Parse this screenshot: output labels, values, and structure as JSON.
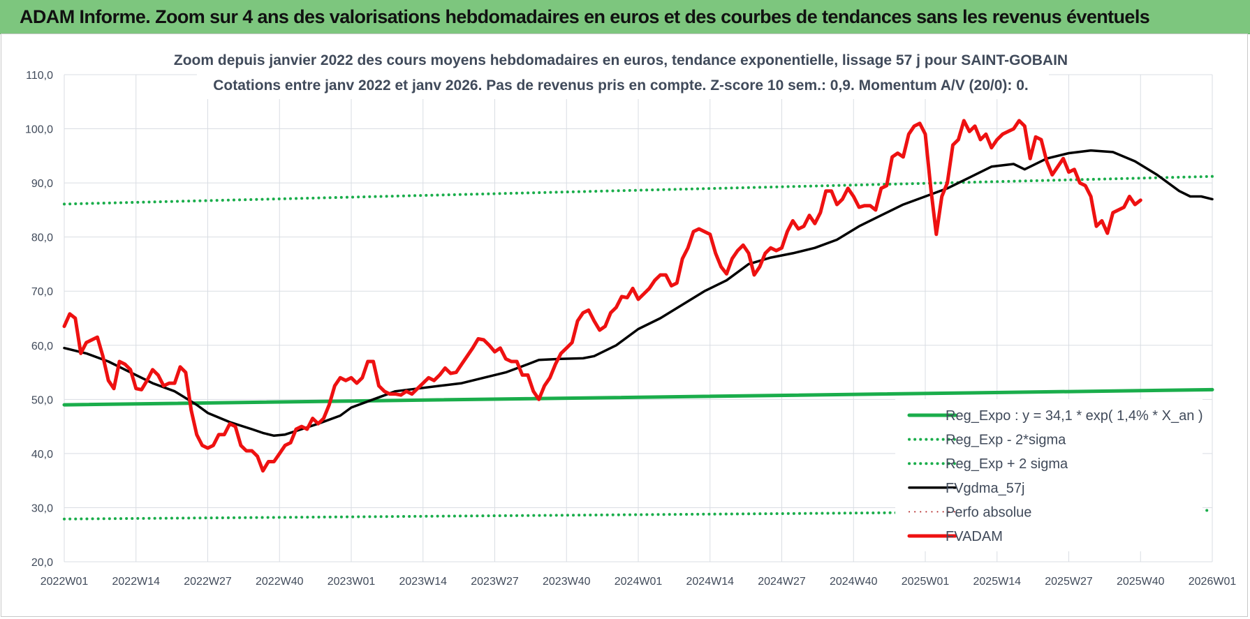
{
  "banner": {
    "title": "ADAM Informe. Zoom sur 4 ans des valorisations hebdomadaires en euros et des courbes de tendances sans les revenus éventuels"
  },
  "chart_data": {
    "type": "line",
    "title": "Zoom depuis janvier 2022 des cours moyens hebdomadaires en euros, tendance exponentielle, lissage 57 j pour SAINT-GOBAIN",
    "subtitle": "Cotations entre janv 2022 et janv 2026. Pas de revenus pris en compte. Z-score 10 sem.: 0,9. Momentum A/V (20/0): 0.",
    "xlabel": "",
    "ylabel": "",
    "ylim": [
      20,
      110
    ],
    "yticks": [
      "20,0",
      "30,0",
      "40,0",
      "50,0",
      "60,0",
      "70,0",
      "80,0",
      "90,0",
      "100,0",
      "110,0"
    ],
    "xlim": [
      0,
      208
    ],
    "xticks": [
      {
        "i": 0,
        "label": "2022W01"
      },
      {
        "i": 13,
        "label": "2022W14"
      },
      {
        "i": 26,
        "label": "2022W27"
      },
      {
        "i": 39,
        "label": "2022W40"
      },
      {
        "i": 52,
        "label": "2023W01"
      },
      {
        "i": 65,
        "label": "2023W14"
      },
      {
        "i": 78,
        "label": "2023W27"
      },
      {
        "i": 91,
        "label": "2023W40"
      },
      {
        "i": 104,
        "label": "2024W01"
      },
      {
        "i": 117,
        "label": "2024W14"
      },
      {
        "i": 130,
        "label": "2024W27"
      },
      {
        "i": 143,
        "label": "2024W40"
      },
      {
        "i": 156,
        "label": "2025W01"
      },
      {
        "i": 169,
        "label": "2025W14"
      },
      {
        "i": 182,
        "label": "2025W27"
      },
      {
        "i": 195,
        "label": "2025W40"
      },
      {
        "i": 208,
        "label": "2026W01"
      }
    ],
    "grid": true,
    "legend_position": "bottom-right",
    "series": [
      {
        "name": "Reg_Expo : y = 34,1 * exp( 1,4% *  X_an )",
        "color": "#1aad4b",
        "style": "solid",
        "width": 5,
        "points": [
          [
            0,
            49.0
          ],
          [
            208,
            51.8
          ]
        ]
      },
      {
        "name": "Reg_Exp - 2*sigma",
        "color": "#1aad4b",
        "style": "dotted",
        "width": 4,
        "points": [
          [
            0,
            27.9
          ],
          [
            208,
            29.5
          ]
        ]
      },
      {
        "name": "Reg_Exp + 2 sigma",
        "color": "#1aad4b",
        "style": "dotted",
        "width": 4,
        "points": [
          [
            0,
            86.1
          ],
          [
            208,
            91.2
          ]
        ]
      },
      {
        "name": "FVgdma_57j",
        "color": "#000000",
        "style": "solid",
        "width": 3.5,
        "points": [
          [
            0,
            59.5
          ],
          [
            4,
            58.5
          ],
          [
            8,
            57.0
          ],
          [
            12,
            55.0
          ],
          [
            16,
            53.0
          ],
          [
            20,
            51.5
          ],
          [
            24,
            49.0
          ],
          [
            26,
            47.5
          ],
          [
            30,
            45.8
          ],
          [
            34,
            44.5
          ],
          [
            36,
            43.8
          ],
          [
            38,
            43.3
          ],
          [
            40,
            43.5
          ],
          [
            43,
            44.5
          ],
          [
            46,
            45.5
          ],
          [
            50,
            47.0
          ],
          [
            52,
            48.5
          ],
          [
            56,
            50.0
          ],
          [
            60,
            51.5
          ],
          [
            64,
            52.0
          ],
          [
            68,
            52.5
          ],
          [
            72,
            53.0
          ],
          [
            76,
            54.0
          ],
          [
            80,
            55.0
          ],
          [
            84,
            56.5
          ],
          [
            86,
            57.3
          ],
          [
            90,
            57.5
          ],
          [
            94,
            57.6
          ],
          [
            96,
            58.0
          ],
          [
            100,
            60.0
          ],
          [
            104,
            63.0
          ],
          [
            108,
            65.0
          ],
          [
            112,
            67.5
          ],
          [
            116,
            70.0
          ],
          [
            120,
            72.0
          ],
          [
            124,
            75.0
          ],
          [
            128,
            76.2
          ],
          [
            132,
            77.0
          ],
          [
            136,
            78.0
          ],
          [
            140,
            79.5
          ],
          [
            144,
            82.0
          ],
          [
            148,
            84.0
          ],
          [
            152,
            86.0
          ],
          [
            156,
            87.5
          ],
          [
            160,
            89.0
          ],
          [
            164,
            91.0
          ],
          [
            168,
            93.0
          ],
          [
            172,
            93.5
          ],
          [
            174,
            92.5
          ],
          [
            178,
            94.5
          ],
          [
            182,
            95.5
          ],
          [
            186,
            96.0
          ],
          [
            190,
            95.7
          ],
          [
            194,
            94.0
          ],
          [
            198,
            91.5
          ],
          [
            202,
            88.5
          ],
          [
            204,
            87.5
          ],
          [
            206,
            87.5
          ],
          [
            208,
            87.0
          ]
        ]
      },
      {
        "name": "Perfo absolue",
        "color": "#b22222",
        "style": "dotted",
        "width": 2,
        "points": []
      },
      {
        "name": "FVADAM",
        "color": "#ee1111",
        "style": "solid",
        "width": 5,
        "points": [
          [
            0,
            63.5
          ],
          [
            1,
            65.8
          ],
          [
            2,
            65.0
          ],
          [
            3,
            58.5
          ],
          [
            4,
            60.5
          ],
          [
            5,
            61.0
          ],
          [
            6,
            61.5
          ],
          [
            7,
            58.0
          ],
          [
            8,
            53.5
          ],
          [
            9,
            52.0
          ],
          [
            10,
            57.0
          ],
          [
            11,
            56.5
          ],
          [
            12,
            55.5
          ],
          [
            13,
            52.0
          ],
          [
            14,
            51.8
          ],
          [
            15,
            53.5
          ],
          [
            16,
            55.5
          ],
          [
            17,
            54.5
          ],
          [
            18,
            52.5
          ],
          [
            19,
            53.0
          ],
          [
            20,
            53.0
          ],
          [
            21,
            56.0
          ],
          [
            22,
            55.0
          ],
          [
            23,
            48.0
          ],
          [
            24,
            43.5
          ],
          [
            25,
            41.5
          ],
          [
            26,
            41.0
          ],
          [
            27,
            41.5
          ],
          [
            28,
            43.5
          ],
          [
            29,
            43.5
          ],
          [
            30,
            45.5
          ],
          [
            31,
            45.0
          ],
          [
            32,
            41.5
          ],
          [
            33,
            40.5
          ],
          [
            34,
            40.5
          ],
          [
            35,
            39.5
          ],
          [
            36,
            36.8
          ],
          [
            37,
            38.5
          ],
          [
            38,
            38.5
          ],
          [
            39,
            40.0
          ],
          [
            40,
            41.5
          ],
          [
            41,
            42.0
          ],
          [
            42,
            44.5
          ],
          [
            43,
            45.0
          ],
          [
            44,
            44.5
          ],
          [
            45,
            46.5
          ],
          [
            46,
            45.5
          ],
          [
            47,
            46.5
          ],
          [
            48,
            49.0
          ],
          [
            49,
            52.5
          ],
          [
            50,
            54.0
          ],
          [
            51,
            53.5
          ],
          [
            52,
            54.0
          ],
          [
            53,
            53.0
          ],
          [
            54,
            54.0
          ],
          [
            55,
            57.0
          ],
          [
            56,
            57.0
          ],
          [
            57,
            52.5
          ],
          [
            58,
            51.5
          ],
          [
            59,
            51.0
          ],
          [
            60,
            51.0
          ],
          [
            61,
            50.8
          ],
          [
            62,
            51.5
          ],
          [
            63,
            51.0
          ],
          [
            64,
            52.0
          ],
          [
            65,
            53.0
          ],
          [
            66,
            54.0
          ],
          [
            67,
            53.5
          ],
          [
            68,
            54.5
          ],
          [
            69,
            55.8
          ],
          [
            70,
            54.8
          ],
          [
            71,
            55.0
          ],
          [
            72,
            56.5
          ],
          [
            73,
            58.0
          ],
          [
            74,
            59.5
          ],
          [
            75,
            61.2
          ],
          [
            76,
            61.0
          ],
          [
            77,
            60.0
          ],
          [
            78,
            58.8
          ],
          [
            79,
            59.5
          ],
          [
            80,
            57.5
          ],
          [
            81,
            57.0
          ],
          [
            82,
            57.0
          ],
          [
            83,
            54.5
          ],
          [
            84,
            54.5
          ],
          [
            85,
            51.5
          ],
          [
            86,
            50.0
          ],
          [
            87,
            52.5
          ],
          [
            88,
            54.0
          ],
          [
            89,
            56.5
          ],
          [
            90,
            58.5
          ],
          [
            91,
            59.5
          ],
          [
            92,
            60.5
          ],
          [
            93,
            64.5
          ],
          [
            94,
            66.0
          ],
          [
            95,
            66.5
          ],
          [
            96,
            64.5
          ],
          [
            97,
            62.8
          ],
          [
            98,
            63.5
          ],
          [
            99,
            66.0
          ],
          [
            100,
            67.0
          ],
          [
            101,
            69.0
          ],
          [
            102,
            68.8
          ],
          [
            103,
            70.5
          ],
          [
            104,
            68.5
          ],
          [
            105,
            69.5
          ],
          [
            106,
            70.5
          ],
          [
            107,
            72.0
          ],
          [
            108,
            73.0
          ],
          [
            109,
            73.0
          ],
          [
            110,
            71.0
          ],
          [
            111,
            71.5
          ],
          [
            112,
            76.0
          ],
          [
            113,
            78.0
          ],
          [
            114,
            81.0
          ],
          [
            115,
            81.5
          ],
          [
            116,
            81.0
          ],
          [
            117,
            80.5
          ],
          [
            118,
            77.0
          ],
          [
            119,
            74.5
          ],
          [
            120,
            73.2
          ],
          [
            121,
            76.0
          ],
          [
            122,
            77.5
          ],
          [
            123,
            78.5
          ],
          [
            124,
            77.0
          ],
          [
            125,
            73.0
          ],
          [
            126,
            74.5
          ],
          [
            127,
            77.0
          ],
          [
            128,
            78.0
          ],
          [
            129,
            77.5
          ],
          [
            130,
            78.0
          ],
          [
            131,
            81.0
          ],
          [
            132,
            83.0
          ],
          [
            133,
            81.5
          ],
          [
            134,
            82.0
          ],
          [
            135,
            84.0
          ],
          [
            136,
            82.5
          ],
          [
            137,
            84.5
          ],
          [
            138,
            88.5
          ],
          [
            139,
            88.5
          ],
          [
            140,
            86.0
          ],
          [
            141,
            87.0
          ],
          [
            142,
            89.0
          ],
          [
            143,
            87.5
          ],
          [
            144,
            85.5
          ],
          [
            145,
            85.8
          ],
          [
            146,
            85.8
          ],
          [
            147,
            85.0
          ],
          [
            148,
            89.0
          ],
          [
            149,
            89.5
          ],
          [
            150,
            94.8
          ],
          [
            151,
            95.5
          ],
          [
            152,
            94.8
          ],
          [
            153,
            99.0
          ],
          [
            154,
            100.5
          ],
          [
            155,
            101.0
          ],
          [
            156,
            99.0
          ],
          [
            157,
            89.0
          ],
          [
            158,
            80.5
          ],
          [
            159,
            87.5
          ],
          [
            160,
            90.0
          ],
          [
            161,
            97.0
          ],
          [
            162,
            98.0
          ],
          [
            163,
            101.5
          ],
          [
            164,
            99.5
          ],
          [
            165,
            100.5
          ],
          [
            166,
            98.0
          ],
          [
            167,
            99.0
          ],
          [
            168,
            96.5
          ],
          [
            169,
            98.0
          ],
          [
            170,
            99.0
          ],
          [
            171,
            99.5
          ],
          [
            172,
            100.0
          ],
          [
            173,
            101.5
          ],
          [
            174,
            100.5
          ],
          [
            175,
            94.5
          ],
          [
            176,
            98.5
          ],
          [
            177,
            98.0
          ],
          [
            178,
            94.0
          ],
          [
            179,
            91.5
          ],
          [
            180,
            93.0
          ],
          [
            181,
            94.5
          ],
          [
            182,
            92.0
          ],
          [
            183,
            92.5
          ],
          [
            184,
            90.0
          ],
          [
            185,
            89.5
          ],
          [
            186,
            87.5
          ],
          [
            187,
            82.0
          ],
          [
            188,
            83.0
          ],
          [
            189,
            80.7
          ],
          [
            190,
            84.5
          ],
          [
            191,
            85.0
          ],
          [
            192,
            85.5
          ],
          [
            193,
            87.5
          ],
          [
            194,
            86.0
          ],
          [
            195,
            86.8
          ]
        ]
      }
    ]
  }
}
